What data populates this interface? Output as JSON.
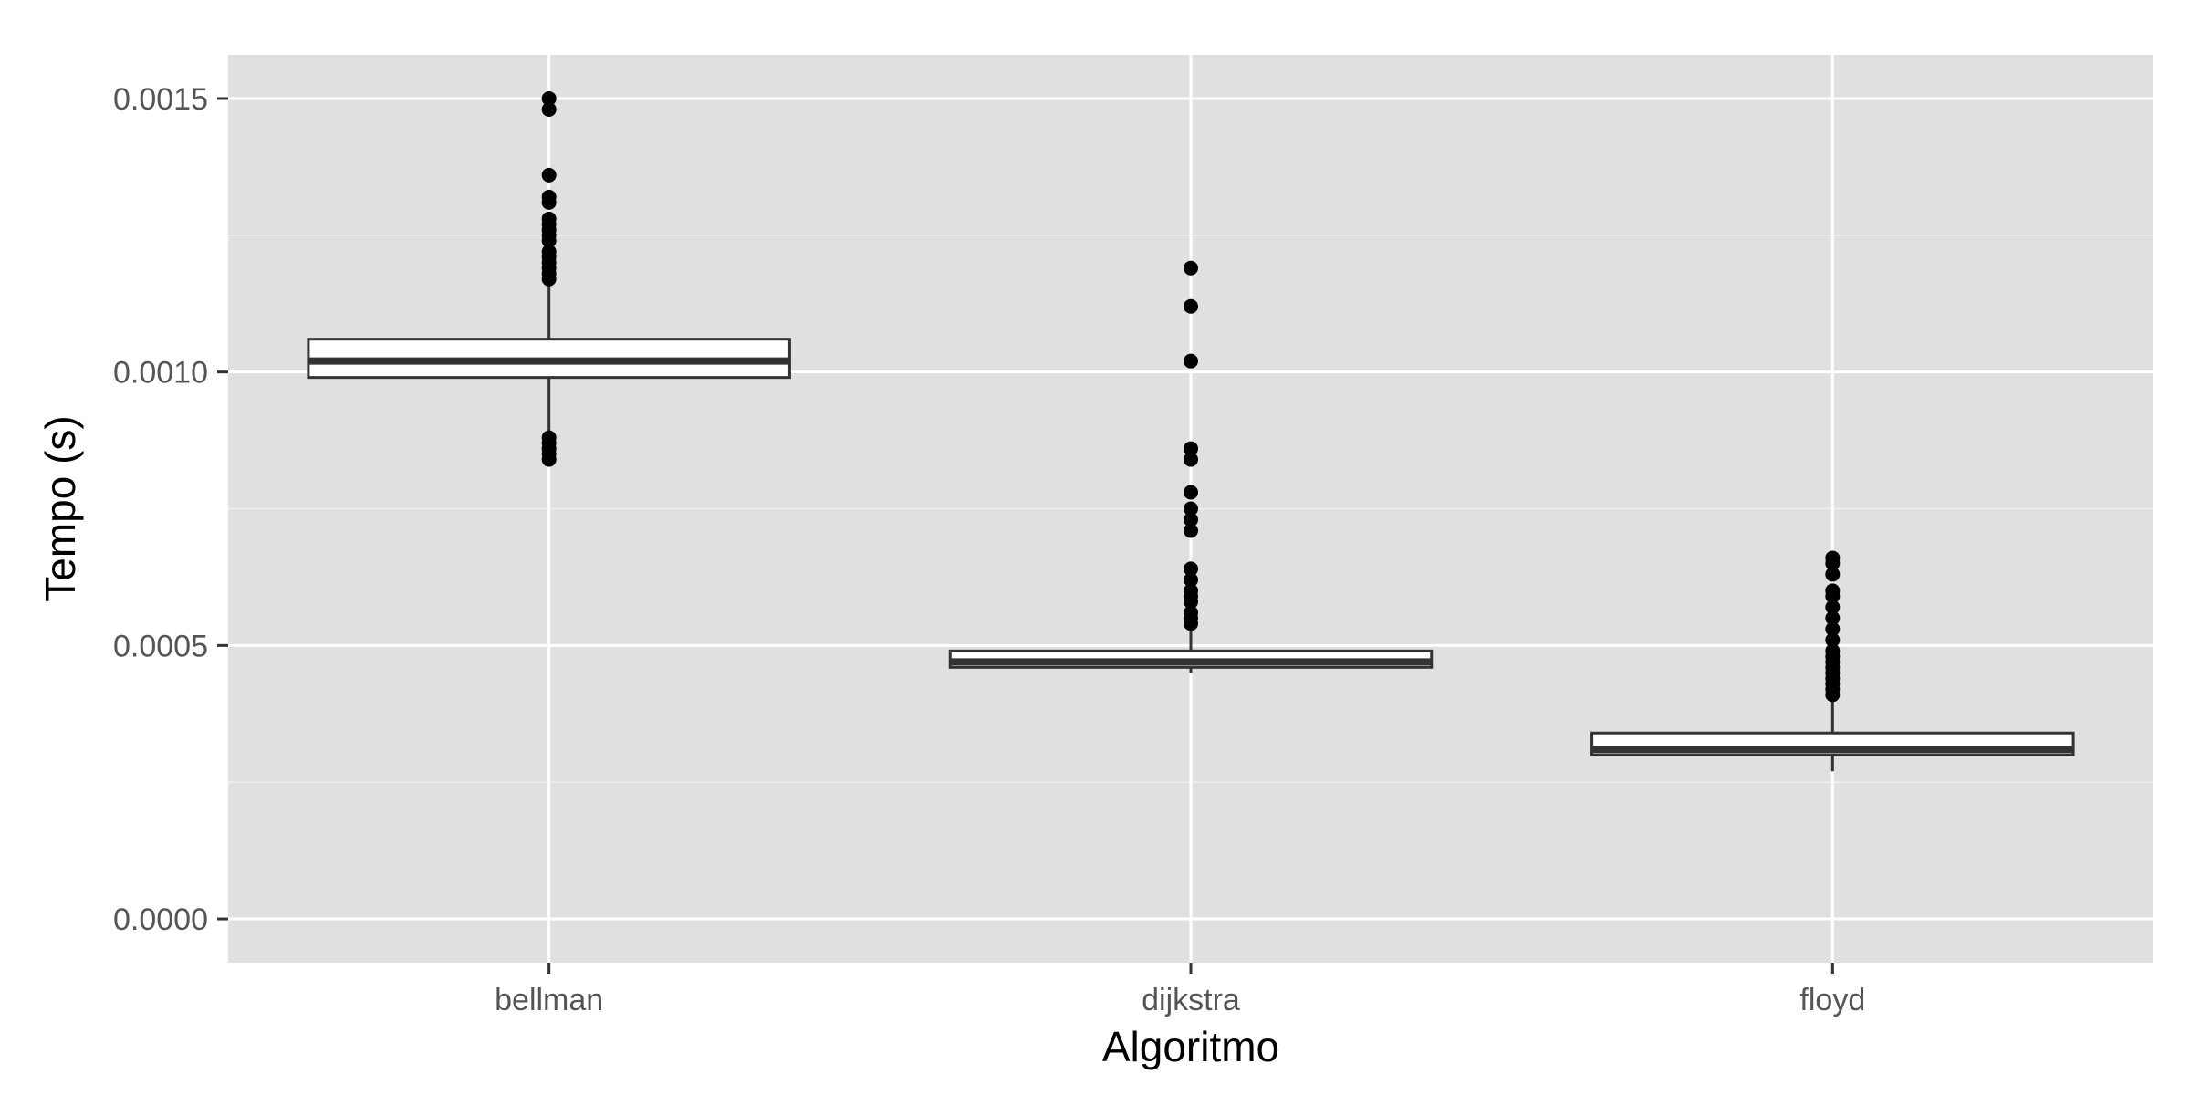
{
  "chart_data": {
    "type": "box",
    "title": "",
    "xlabel": "Algoritmo",
    "ylabel": "Tempo (s)",
    "ylim": [
      -8e-05,
      0.00158
    ],
    "yticks": [
      0.0,
      0.0005,
      0.001,
      0.0015
    ],
    "ytick_labels": [
      "0.0000",
      "0.0005",
      "0.0010",
      "0.0015"
    ],
    "grid": true,
    "categories": [
      "bellman",
      "dijkstra",
      "floyd"
    ],
    "boxes": [
      {
        "category": "bellman",
        "whisker_low": 0.00089,
        "q1": 0.00099,
        "median": 0.00102,
        "q3": 0.00106,
        "whisker_high": 0.00116,
        "outliers": [
          0.0015,
          0.00148,
          0.00136,
          0.00132,
          0.00131,
          0.00128,
          0.00127,
          0.00126,
          0.00125,
          0.00124,
          0.00122,
          0.00121,
          0.0012,
          0.00119,
          0.00118,
          0.00117,
          0.00088,
          0.00087,
          0.00086,
          0.00085,
          0.00084
        ]
      },
      {
        "category": "dijkstra",
        "whisker_low": 0.00045,
        "q1": 0.00046,
        "median": 0.00047,
        "q3": 0.00049,
        "whisker_high": 0.00053,
        "outliers": [
          0.00119,
          0.00112,
          0.00102,
          0.00086,
          0.00084,
          0.00078,
          0.00075,
          0.00073,
          0.00071,
          0.00064,
          0.00062,
          0.0006,
          0.00059,
          0.00058,
          0.00056,
          0.00055,
          0.00054
        ]
      },
      {
        "category": "floyd",
        "whisker_low": 0.00027,
        "q1": 0.0003,
        "median": 0.00031,
        "q3": 0.00034,
        "whisker_high": 0.0004,
        "outliers": [
          0.00066,
          0.00065,
          0.00063,
          0.0006,
          0.00059,
          0.00057,
          0.00055,
          0.00053,
          0.00051,
          0.00049,
          0.00048,
          0.00047,
          0.00046,
          0.00045,
          0.00044,
          0.00043,
          0.00042,
          0.00041
        ]
      }
    ],
    "colors": {
      "panel": "#e0e0e0",
      "grid_major": "#ffffff",
      "grid_minor": "#f0f0f0",
      "box_fill": "#ffffff",
      "box_stroke": "#333333",
      "point": "#000000",
      "tick_text": "#555555",
      "axis_title": "#000000"
    }
  }
}
